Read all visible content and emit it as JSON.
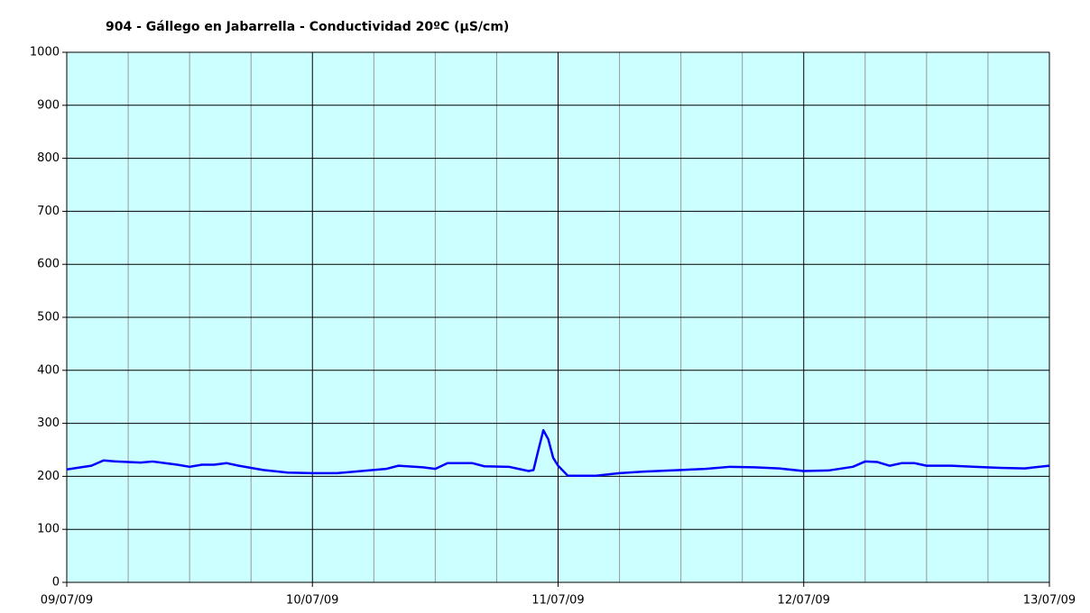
{
  "chart_data": {
    "type": "line",
    "title": "904 - Gállego en Jabarrella - Conductividad 20ºC (µS/cm)",
    "x": [
      0,
      0.1,
      0.15,
      0.2,
      0.3,
      0.35,
      0.4,
      0.45,
      0.5,
      0.55,
      0.6,
      0.65,
      0.7,
      0.8,
      0.9,
      1.0,
      1.1,
      1.2,
      1.3,
      1.35,
      1.45,
      1.5,
      1.55,
      1.65,
      1.7,
      1.8,
      1.85,
      1.88,
      1.9,
      1.92,
      1.94,
      1.96,
      1.98,
      2.0,
      2.04,
      2.15,
      2.25,
      2.35,
      2.5,
      2.6,
      2.7,
      2.8,
      2.9,
      3.0,
      3.1,
      3.2,
      3.25,
      3.3,
      3.35,
      3.4,
      3.45,
      3.5,
      3.6,
      3.7,
      3.8,
      3.9,
      4.0
    ],
    "series": [
      {
        "color": "#0000ff",
        "values": [
          213,
          220,
          230,
          228,
          226,
          228,
          225,
          222,
          218,
          222,
          222,
          225,
          220,
          212,
          207,
          206,
          206,
          210,
          214,
          220,
          217,
          214,
          225,
          225,
          219,
          218,
          213,
          210,
          212,
          250,
          287,
          270,
          235,
          220,
          201,
          201,
          206,
          209,
          212,
          214,
          218,
          217,
          215,
          210,
          211,
          218,
          228,
          227,
          220,
          225,
          225,
          220,
          220,
          218,
          216,
          215,
          220
        ]
      }
    ],
    "xlim": [
      0,
      4
    ],
    "xticks": [
      {
        "value": 0,
        "label": "09/07/09"
      },
      {
        "value": 1,
        "label": "10/07/09"
      },
      {
        "value": 2,
        "label": "11/07/09"
      },
      {
        "value": 3,
        "label": "12/07/09"
      },
      {
        "value": 4,
        "label": "13/07/09"
      }
    ],
    "x_minor_ticks": [
      0.25,
      0.5,
      0.75,
      1.25,
      1.5,
      1.75,
      2.25,
      2.5,
      2.75,
      3.25,
      3.5,
      3.75
    ],
    "ylim": [
      0,
      1000
    ],
    "yticks": [
      0,
      100,
      200,
      300,
      400,
      500,
      600,
      700,
      800,
      900,
      1000
    ],
    "grid": true
  }
}
